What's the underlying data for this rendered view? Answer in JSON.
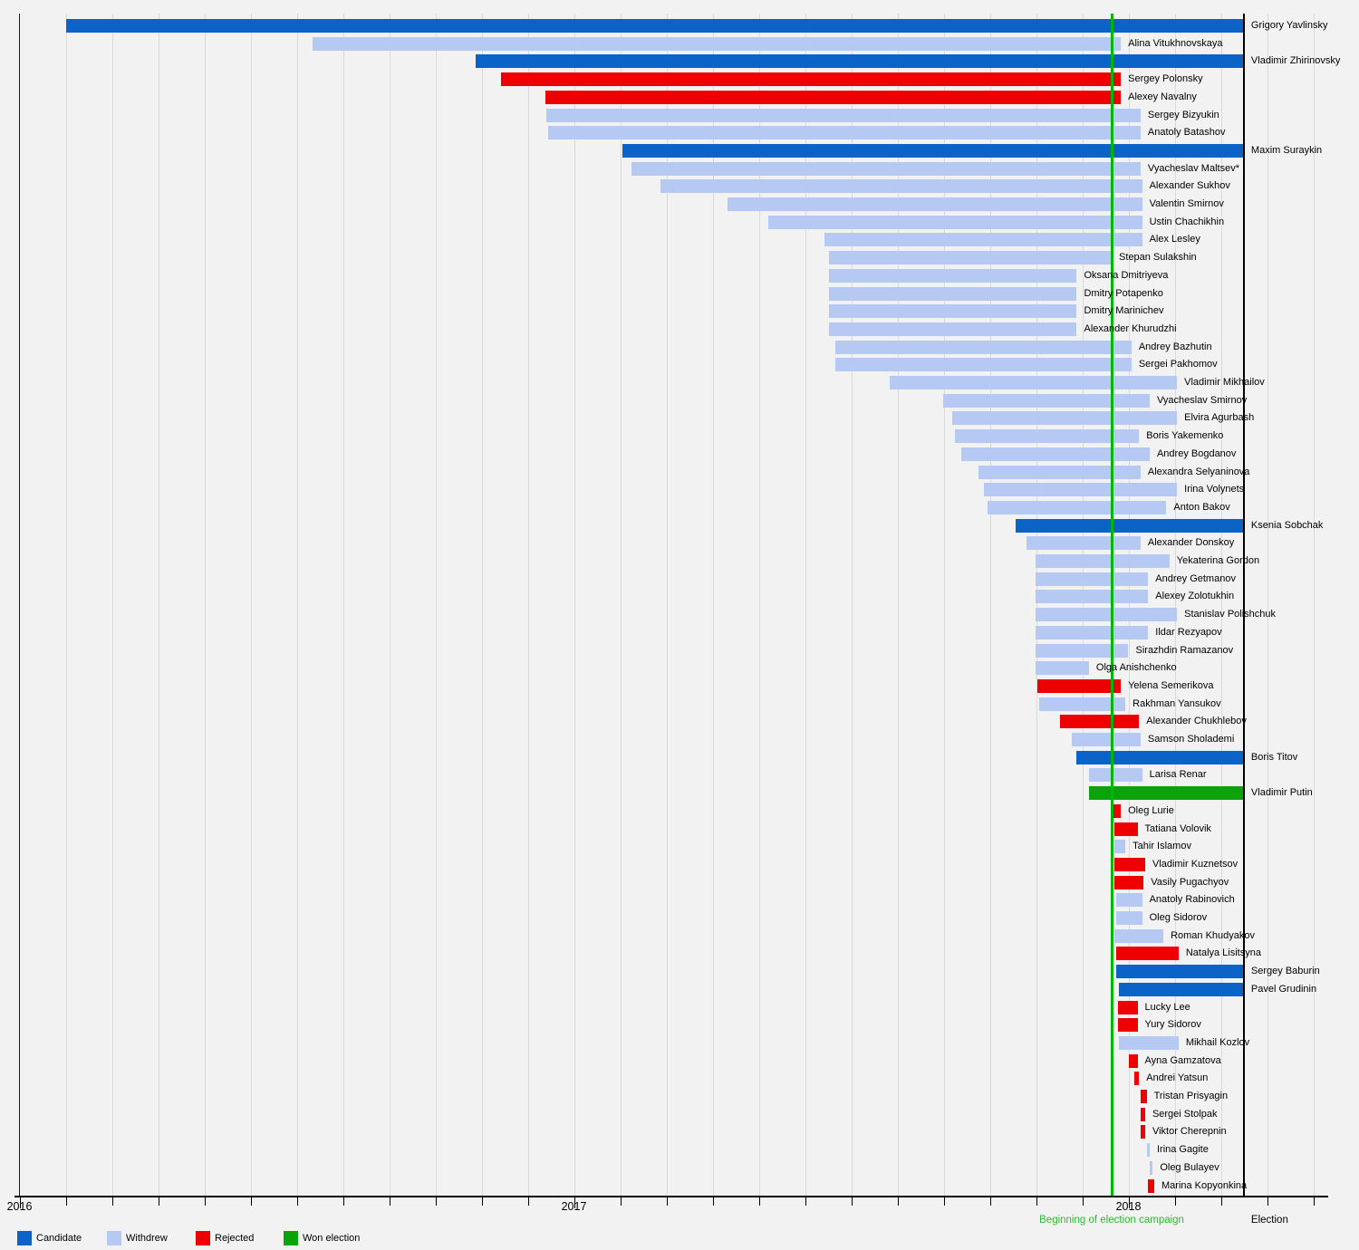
{
  "legend": {
    "items": [
      {
        "label": "Candidate",
        "status": "candidate"
      },
      {
        "label": "Withdrew",
        "status": "withdrew"
      },
      {
        "label": "Rejected",
        "status": "rejected"
      },
      {
        "label": "Won election",
        "status": "won"
      }
    ]
  },
  "chart_data": {
    "type": "gantt",
    "x_axis": {
      "start": "2016-01-01",
      "end": "2018-06-01",
      "unit": "month",
      "year_labels": [
        "2016",
        "2017",
        "2018"
      ],
      "grid": true
    },
    "colors": {
      "candidate": "#0b63c8",
      "withdrew": "#b5c9f2",
      "rejected": "#ee0000",
      "won": "#0aa40a"
    },
    "events": {
      "campaign_start": {
        "date": "2017-12-21",
        "label": "Beginning of election campaign",
        "line_color": "#00b50a",
        "text_color": "#2db92d"
      },
      "election": {
        "date": "2018-03-18",
        "label": "Election",
        "line_color": "#000000",
        "text_color": "#000000"
      }
    },
    "bars": [
      {
        "name": "Grigory Yavlinsky",
        "status": "candidate",
        "start": "2016-02-01",
        "end": null
      },
      {
        "name": "Alina Vitukhnovskaya",
        "status": "withdrew",
        "start": "2016-07-13",
        "end": "2017-12-27"
      },
      {
        "name": "Vladimir Zhirinovsky",
        "status": "candidate",
        "start": "2016-10-28",
        "end": null
      },
      {
        "name": "Sergey Polonsky",
        "status": "rejected",
        "start": "2016-11-14",
        "end": "2017-12-27"
      },
      {
        "name": "Alexey Navalny",
        "status": "rejected",
        "start": "2016-12-13",
        "end": "2017-12-27"
      },
      {
        "name": "Sergey Bizyukin",
        "status": "withdrew",
        "start": "2016-12-14",
        "end": "2018-01-09"
      },
      {
        "name": "Anatoly Batashov",
        "status": "withdrew",
        "start": "2016-12-15",
        "end": "2018-01-09"
      },
      {
        "name": "Maxim Suraykin",
        "status": "candidate",
        "start": "2017-02-02",
        "end": null
      },
      {
        "name": "Vyacheslav Maltsev*",
        "status": "withdrew",
        "start": "2017-02-08",
        "end": "2018-01-09"
      },
      {
        "name": "Alexander Sukhov",
        "status": "withdrew",
        "start": "2017-02-27",
        "end": "2018-01-10"
      },
      {
        "name": "Valentin Smirnov",
        "status": "withdrew",
        "start": "2017-04-12",
        "end": "2018-01-10"
      },
      {
        "name": "Ustin Chachikhin",
        "status": "withdrew",
        "start": "2017-05-09",
        "end": "2018-01-10"
      },
      {
        "name": "Alex Lesley",
        "status": "withdrew",
        "start": "2017-06-15",
        "end": "2018-01-10"
      },
      {
        "name": "Stepan Sulakshin",
        "status": "withdrew",
        "start": "2017-06-18",
        "end": "2017-12-21"
      },
      {
        "name": "Oksana Dmitriyeva",
        "status": "withdrew",
        "start": "2017-06-18",
        "end": "2017-11-28"
      },
      {
        "name": "Dmitry Potapenko",
        "status": "withdrew",
        "start": "2017-06-18",
        "end": "2017-11-28"
      },
      {
        "name": "Dmitry Marinichev",
        "status": "withdrew",
        "start": "2017-06-18",
        "end": "2017-11-28"
      },
      {
        "name": "Alexander Khurudzhi",
        "status": "withdrew",
        "start": "2017-06-18",
        "end": "2017-11-28"
      },
      {
        "name": "Andrey Bazhutin",
        "status": "withdrew",
        "start": "2017-06-22",
        "end": "2018-01-03"
      },
      {
        "name": "Sergei Pakhomov",
        "status": "withdrew",
        "start": "2017-06-22",
        "end": "2018-01-03"
      },
      {
        "name": "Vladimir Mikhailov",
        "status": "withdrew",
        "start": "2017-07-28",
        "end": "2018-02-02"
      },
      {
        "name": "Vyacheslav Smirnov",
        "status": "withdrew",
        "start": "2017-09-01",
        "end": "2018-01-15"
      },
      {
        "name": "Elvira Agurbash",
        "status": "withdrew",
        "start": "2017-09-07",
        "end": "2018-02-02"
      },
      {
        "name": "Boris Yakemenko",
        "status": "withdrew",
        "start": "2017-09-09",
        "end": "2018-01-08"
      },
      {
        "name": "Andrey Bogdanov",
        "status": "withdrew",
        "start": "2017-09-13",
        "end": "2018-01-15"
      },
      {
        "name": "Alexandra Selyaninova",
        "status": "withdrew",
        "start": "2017-09-24",
        "end": "2018-01-09"
      },
      {
        "name": "Irina Volynets",
        "status": "withdrew",
        "start": "2017-09-28",
        "end": "2018-02-02"
      },
      {
        "name": "Anton Bakov",
        "status": "withdrew",
        "start": "2017-09-30",
        "end": "2018-01-26"
      },
      {
        "name": "Ksenia Sobchak",
        "status": "candidate",
        "start": "2017-10-19",
        "end": null
      },
      {
        "name": "Alexander Donskoy",
        "status": "withdrew",
        "start": "2017-10-26",
        "end": "2018-01-09"
      },
      {
        "name": "Yekaterina Gordon",
        "status": "withdrew",
        "start": "2017-11-01",
        "end": "2018-01-28"
      },
      {
        "name": "Andrey Getmanov",
        "status": "withdrew",
        "start": "2017-11-01",
        "end": "2018-01-14"
      },
      {
        "name": "Alexey Zolotukhin",
        "status": "withdrew",
        "start": "2017-11-01",
        "end": "2018-01-14"
      },
      {
        "name": "Stanislav Polishchuk",
        "status": "withdrew",
        "start": "2017-11-01",
        "end": "2018-02-02"
      },
      {
        "name": "Ildar Rezyapov",
        "status": "withdrew",
        "start": "2017-11-01",
        "end": "2018-01-14"
      },
      {
        "name": "Sirazhdin Ramazanov",
        "status": "withdrew",
        "start": "2017-11-01",
        "end": "2018-01-01"
      },
      {
        "name": "Olga Anishchenko",
        "status": "withdrew",
        "start": "2017-11-01",
        "end": "2017-12-06"
      },
      {
        "name": "Yelena Semerikova",
        "status": "rejected",
        "start": "2017-11-02",
        "end": "2017-12-27"
      },
      {
        "name": "Rakhman Yansukov",
        "status": "withdrew",
        "start": "2017-11-03",
        "end": "2017-12-30"
      },
      {
        "name": "Alexander Chukhlebov",
        "status": "rejected",
        "start": "2017-11-17",
        "end": "2018-01-08"
      },
      {
        "name": "Samson Sholademi",
        "status": "withdrew",
        "start": "2017-11-25",
        "end": "2018-01-09"
      },
      {
        "name": "Boris Titov",
        "status": "candidate",
        "start": "2017-11-28",
        "end": null
      },
      {
        "name": "Larisa Renar",
        "status": "withdrew",
        "start": "2017-12-06",
        "end": "2018-01-10"
      },
      {
        "name": "Vladimir Putin",
        "status": "won",
        "start": "2017-12-06",
        "end": null
      },
      {
        "name": "Oleg Lurie",
        "status": "rejected",
        "start": "2017-12-21",
        "end": "2017-12-27"
      },
      {
        "name": "Tatiana Volovik",
        "status": "rejected",
        "start": "2017-12-23",
        "end": "2018-01-07"
      },
      {
        "name": "Tahir Islamov",
        "status": "withdrew",
        "start": "2017-12-23",
        "end": "2017-12-30"
      },
      {
        "name": "Vladimir Kuznetsov",
        "status": "rejected",
        "start": "2017-12-23",
        "end": "2018-01-12"
      },
      {
        "name": "Vasily Pugachyov",
        "status": "rejected",
        "start": "2017-12-23",
        "end": "2018-01-11"
      },
      {
        "name": "Anatoly Rabinovich",
        "status": "withdrew",
        "start": "2017-12-24",
        "end": "2018-01-10"
      },
      {
        "name": "Oleg Sidorov",
        "status": "withdrew",
        "start": "2017-12-24",
        "end": "2018-01-10"
      },
      {
        "name": "Roman Khudyakov",
        "status": "withdrew",
        "start": "2017-12-23",
        "end": "2018-01-24"
      },
      {
        "name": "Natalya Lisitsyna",
        "status": "rejected",
        "start": "2017-12-24",
        "end": "2018-02-03"
      },
      {
        "name": "Sergey Baburin",
        "status": "candidate",
        "start": "2017-12-24",
        "end": null
      },
      {
        "name": "Pavel Grudinin",
        "status": "candidate",
        "start": "2017-12-26",
        "end": null
      },
      {
        "name": "Lucky Lee",
        "status": "rejected",
        "start": "2017-12-25",
        "end": "2018-01-07"
      },
      {
        "name": "Yury Sidorov",
        "status": "rejected",
        "start": "2017-12-25",
        "end": "2018-01-07"
      },
      {
        "name": "Mikhail Kozlov",
        "status": "withdrew",
        "start": "2017-12-26",
        "end": "2018-02-03"
      },
      {
        "name": "Ayna Gamzatova",
        "status": "rejected",
        "start": "2018-01-01",
        "end": "2018-01-07"
      },
      {
        "name": "Andrei Yatsun",
        "status": "rejected",
        "start": "2018-01-05",
        "end": "2018-01-08"
      },
      {
        "name": "Tristan Prisyagin",
        "status": "rejected",
        "start": "2018-01-09",
        "end": "2018-01-13"
      },
      {
        "name": "Sergei Stolpak",
        "status": "rejected",
        "start": "2018-01-09",
        "end": "2018-01-12"
      },
      {
        "name": "Viktor Cherepnin",
        "status": "rejected",
        "start": "2018-01-09",
        "end": "2018-01-12"
      },
      {
        "name": "Irina Gagite",
        "status": "withdrew",
        "start": "2018-01-13",
        "end": "2018-01-15"
      },
      {
        "name": "Oleg Bulayev",
        "status": "withdrew",
        "start": "2018-01-15",
        "end": "2018-01-17"
      },
      {
        "name": "Marina Kopyonkina",
        "status": "rejected",
        "start": "2018-01-14",
        "end": "2018-01-18"
      }
    ]
  }
}
